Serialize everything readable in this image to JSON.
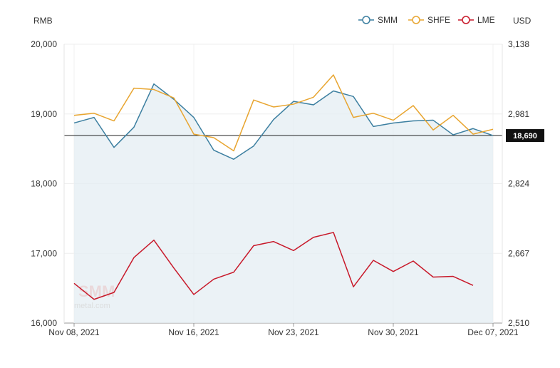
{
  "chart_data": {
    "type": "line",
    "left_axis_unit": "RMB",
    "right_axis_unit": "USD",
    "ylim": [
      16000,
      20000
    ],
    "y_ticks": [
      "16,000",
      "17,000",
      "18,000",
      "19,000",
      "20,000"
    ],
    "y_right_ticks": [
      "2,510",
      "2,667",
      "2,824",
      "2,981",
      "3,138"
    ],
    "x_tick_labels": [
      "Nov 08, 2021",
      "Nov 16, 2021",
      "Nov 23, 2021",
      "Nov 30, 2021",
      "Dec 07, 2021"
    ],
    "x_tick_index": [
      0,
      6,
      11,
      16,
      21
    ],
    "x_count": 22,
    "grid": true,
    "legend_position": "top-right",
    "current_value": 18690,
    "current_value_label": "18,690",
    "series": [
      {
        "name": "SMM",
        "color": "#3c7fa0",
        "filled": true,
        "values": [
          18870,
          18950,
          18520,
          18810,
          19430,
          19210,
          18950,
          18480,
          18350,
          18540,
          18920,
          19180,
          19130,
          19330,
          19250,
          18820,
          18870,
          18900,
          18910,
          18700,
          18790,
          18690
        ]
      },
      {
        "name": "SHFE",
        "color": "#e8a530",
        "filled": false,
        "values": [
          18980,
          19010,
          18900,
          19370,
          19350,
          19230,
          18710,
          18660,
          18470,
          19200,
          19100,
          19140,
          19240,
          19560,
          18950,
          19010,
          18910,
          19120,
          18770,
          18980,
          18710,
          18780
        ]
      },
      {
        "name": "LME",
        "color": "#c8192a",
        "filled": false,
        "values": [
          16570,
          16340,
          16440,
          16940,
          17190,
          16790,
          16410,
          16630,
          16730,
          17110,
          17170,
          17040,
          17230,
          17300,
          16520,
          16900,
          16740,
          16890,
          16660,
          16670,
          16540,
          null
        ]
      }
    ],
    "watermark": "SMM",
    "watermark_sub": "metal.com"
  }
}
